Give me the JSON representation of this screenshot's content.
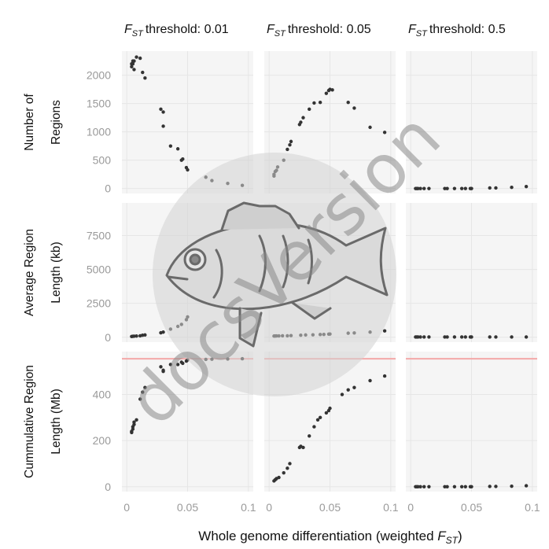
{
  "chart_data": {
    "type": "scatter",
    "facet_columns": [
      {
        "prefix": "F",
        "subscript": "ST",
        "label": "threshold",
        "value": ":  0.01"
      },
      {
        "prefix": "F",
        "subscript": "ST",
        "label": "threshold",
        "value": ":  0.05"
      },
      {
        "prefix": "F",
        "subscript": "ST",
        "label": "threshold",
        "value": ":  0.5"
      }
    ],
    "facet_rows": [
      {
        "label_lines": [
          "Number of",
          "Regions"
        ],
        "ylim": [
          0,
          2400
        ],
        "ticks": [
          0,
          500,
          1000,
          1500,
          2000
        ],
        "tick_labels": [
          "0",
          "500",
          "1000",
          "1500",
          "2000"
        ],
        "panels": [
          {
            "x": [
              0.004,
              0.004,
              0.005,
              0.005,
              0.006,
              0.006,
              0.008,
              0.011,
              0.013,
              0.015,
              0.028,
              0.03,
              0.03,
              0.036,
              0.042,
              0.045,
              0.046,
              0.049,
              0.05,
              0.065,
              0.07,
              0.083,
              0.095
            ],
            "y": [
              2200,
              2150,
              2250,
              2200,
              2100,
              2250,
              2320,
              2300,
              2050,
              1950,
              1400,
              1350,
              1100,
              750,
              700,
              500,
              520,
              370,
              330,
              200,
              140,
              90,
              55
            ]
          },
          {
            "x": [
              0.004,
              0.004,
              0.005,
              0.006,
              0.007,
              0.012,
              0.015,
              0.017,
              0.018,
              0.025,
              0.026,
              0.028,
              0.033,
              0.037,
              0.042,
              0.047,
              0.049,
              0.05,
              0.052,
              0.065,
              0.07,
              0.083,
              0.095
            ],
            "y": [
              220,
              250,
              300,
              320,
              380,
              500,
              690,
              770,
              830,
              1130,
              1170,
              1250,
              1400,
              1510,
              1520,
              1680,
              1730,
              1750,
              1740,
              1520,
              1420,
              1080,
              990
            ]
          },
          {
            "x": [
              0.004,
              0.005,
              0.006,
              0.008,
              0.011,
              0.015,
              0.028,
              0.03,
              0.036,
              0.042,
              0.045,
              0.049,
              0.05,
              0.065,
              0.07,
              0.083,
              0.095
            ],
            "y": [
              0,
              0,
              0,
              0,
              0,
              0,
              0,
              0,
              0,
              0,
              0,
              0,
              0,
              10,
              10,
              20,
              35
            ]
          }
        ]
      },
      {
        "label_lines": [
          "Average Region",
          "Length (kb)"
        ],
        "ylim": [
          0,
          9800
        ],
        "ticks": [
          0,
          2500,
          5000,
          7500
        ],
        "tick_labels": [
          "0",
          "2500",
          "5000",
          "7500"
        ],
        "panels": [
          {
            "x": [
              0.004,
              0.005,
              0.006,
              0.008,
              0.011,
              0.013,
              0.015,
              0.028,
              0.03,
              0.036,
              0.042,
              0.045,
              0.049,
              0.05,
              0.065,
              0.07,
              0.083,
              0.095
            ],
            "y": [
              60,
              70,
              80,
              90,
              110,
              150,
              170,
              330,
              380,
              600,
              800,
              950,
              1300,
              1500,
              3000,
              4500,
              7000,
              9600
            ]
          },
          {
            "x": [
              0.004,
              0.005,
              0.006,
              0.008,
              0.011,
              0.015,
              0.018,
              0.026,
              0.03,
              0.036,
              0.042,
              0.045,
              0.049,
              0.05,
              0.065,
              0.07,
              0.083,
              0.095
            ],
            "y": [
              90,
              95,
              100,
              100,
              110,
              110,
              120,
              150,
              170,
              180,
              200,
              210,
              230,
              240,
              300,
              320,
              380,
              470
            ]
          },
          {
            "x": [
              0.004,
              0.005,
              0.006,
              0.008,
              0.011,
              0.015,
              0.028,
              0.03,
              0.036,
              0.042,
              0.045,
              0.049,
              0.05,
              0.065,
              0.07,
              0.083,
              0.095
            ],
            "y": [
              20,
              20,
              20,
              20,
              20,
              20,
              20,
              20,
              20,
              20,
              20,
              20,
              20,
              20,
              20,
              20,
              20
            ]
          }
        ]
      },
      {
        "label_lines": [
          "Cummulative Region",
          "Length (Mb)"
        ],
        "ylim": [
          0,
          580
        ],
        "ticks": [
          0,
          200,
          400
        ],
        "tick_labels": [
          "0",
          "200",
          "400"
        ],
        "hline": 555,
        "hline_color": "#f4a8a8",
        "panels": [
          {
            "x": [
              0.004,
              0.004,
              0.005,
              0.005,
              0.006,
              0.006,
              0.008,
              0.011,
              0.013,
              0.015,
              0.028,
              0.03,
              0.03,
              0.036,
              0.042,
              0.045,
              0.046,
              0.049,
              0.05,
              0.065,
              0.07,
              0.083,
              0.095
            ],
            "y": [
              235,
              240,
              250,
              260,
              270,
              280,
              290,
              380,
              410,
              430,
              520,
              500,
              505,
              530,
              530,
              540,
              535,
              545,
              550,
              552,
              553,
              554,
              555
            ]
          },
          {
            "x": [
              0.004,
              0.005,
              0.006,
              0.008,
              0.012,
              0.015,
              0.017,
              0.025,
              0.026,
              0.028,
              0.033,
              0.037,
              0.04,
              0.042,
              0.047,
              0.049,
              0.05,
              0.06,
              0.065,
              0.07,
              0.083,
              0.095
            ],
            "y": [
              25,
              30,
              35,
              40,
              60,
              80,
              100,
              170,
              175,
              170,
              220,
              260,
              290,
              300,
              320,
              330,
              340,
              400,
              420,
              430,
              460,
              480
            ]
          },
          {
            "x": [
              0.004,
              0.005,
              0.006,
              0.008,
              0.011,
              0.015,
              0.028,
              0.03,
              0.036,
              0.042,
              0.045,
              0.049,
              0.05,
              0.065,
              0.07,
              0.083,
              0.095
            ],
            "y": [
              0,
              0,
              0,
              0,
              0,
              0,
              0,
              0,
              0,
              0,
              0,
              0,
              0,
              1,
              1,
              2,
              4
            ]
          }
        ]
      }
    ],
    "xlim": [
      -0.004,
      0.104
    ],
    "x_ticks": [
      0,
      0.05,
      0.1
    ],
    "x_tick_labels": [
      "0",
      "0.05",
      "0.1"
    ],
    "xlabel": {
      "text": "Whole  genome differentiation (weighted ",
      "italic": "F",
      "subscript": "ST",
      "close": ")"
    },
    "grid": true,
    "legend": "none",
    "point_color": "#333333",
    "panel_background": "#f5f5f5",
    "grid_color": "#e6e6e6"
  },
  "watermark": {
    "text": "docsVersion",
    "logo": "fish-icon"
  }
}
